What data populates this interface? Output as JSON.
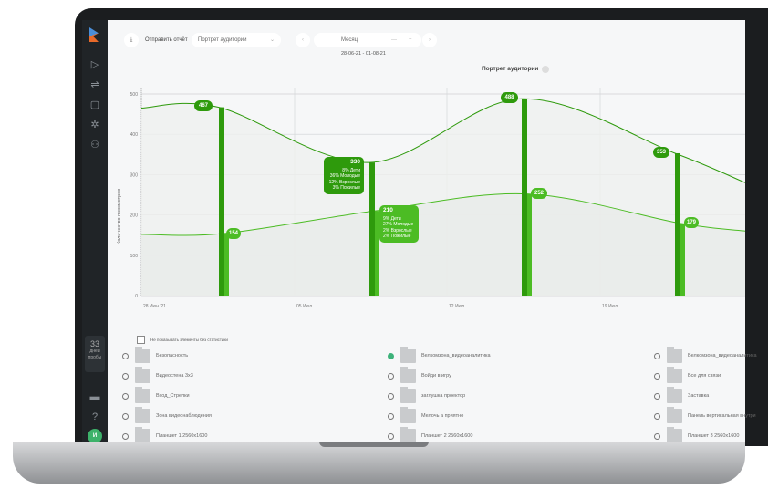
{
  "toolbar": {
    "send_report": "Отправить отчёт",
    "report_select": "Портрет аудитории",
    "period": "Месяц",
    "date_range": "28-06-21 - 01-08-21"
  },
  "sidebar": {
    "trial_days": "33",
    "trial_label": "дней пробы",
    "avatar": "И"
  },
  "chart_data": {
    "type": "line",
    "title": "Портрет аудитории",
    "ylabel": "Количество просмотров",
    "ylim": [
      0,
      500
    ],
    "yticks": [
      "0",
      "100",
      "200",
      "300",
      "400",
      "500"
    ],
    "xticks": [
      "28 Июн '21",
      "05 Июл",
      "12 Июл",
      "19 Июл"
    ],
    "grid": true,
    "series": [
      {
        "points": [
          {
            "x": "02 Июл",
            "y": 467
          },
          {
            "x": "09 Июл",
            "y": 330
          },
          {
            "x": "16 Июл",
            "y": 488
          },
          {
            "x": "23 Июл",
            "y": 353
          }
        ],
        "color": "#2e9a0c"
      },
      {
        "points": [
          {
            "x": "02 Июл",
            "y": 154
          },
          {
            "x": "09 Июл",
            "y": 210
          },
          {
            "x": "16 Июл",
            "y": 252
          },
          {
            "x": "23 Июл",
            "y": 179
          }
        ],
        "color": "#4cbc24"
      }
    ],
    "tooltips": [
      {
        "value": "330",
        "lines": [
          "8% Дети",
          "36% Молодые",
          "12% Взрослые",
          "3% Пожилые"
        ]
      },
      {
        "value": "210",
        "lines": [
          "9% Дети",
          "27% Молодые",
          "2% Взрослые",
          "2% Пожилые"
        ]
      }
    ]
  },
  "filter": {
    "hide_empty": "Не показывать элементы без статистики"
  },
  "items": [
    [
      {
        "name": "Безопасность",
        "letter": "Б"
      },
      {
        "name": "Видеостена 3x3",
        "letter": "В"
      },
      {
        "name": "Вход_Стрелки",
        "letter": "В"
      },
      {
        "name": "Зона видеонаблюдения",
        "letter": "З"
      },
      {
        "name": "Планшет 1 2560x1600",
        "letter": "П"
      }
    ],
    [
      {
        "name": "Велкомзона_видеоаналитика",
        "letter": "В",
        "checked": true
      },
      {
        "name": "Войди в игру",
        "letter": "В"
      },
      {
        "name": "заглушка проектор",
        "letter": "з"
      },
      {
        "name": "Мелочь а приятно",
        "letter": "М"
      },
      {
        "name": "Планшет 2 2560x1600",
        "letter": "П"
      }
    ],
    [
      {
        "name": "Велкомзона_видеоаналитика",
        "letter": "В"
      },
      {
        "name": "Все для связи",
        "letter": "В"
      },
      {
        "name": "Заставка",
        "letter": "З"
      },
      {
        "name": "Панель вертикальная внутри",
        "letter": "П"
      },
      {
        "name": "Планшет 3 2560x1600",
        "letter": "П"
      }
    ]
  ]
}
